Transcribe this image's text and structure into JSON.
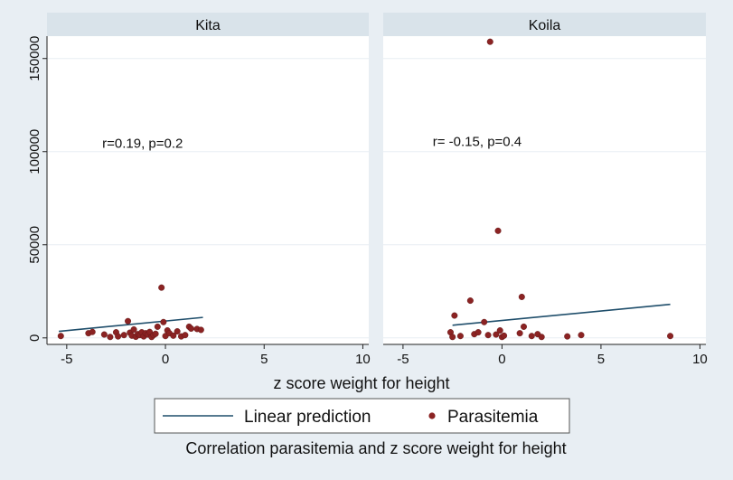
{
  "chart_data": {
    "type": "scatter",
    "title": "Correlation parasitemia and z score weight for height",
    "xlabel": "z score weight for height",
    "ylabel": "",
    "xlim": [
      -6,
      10.3
    ],
    "ylim": [
      -3500,
      162000
    ],
    "x_ticks": [
      -5,
      0,
      5,
      10
    ],
    "y_ticks": [
      0,
      50000,
      100000,
      150000
    ],
    "grid": true,
    "legend": {
      "placement": "bottom",
      "entries": [
        "Linear prediction",
        "Parasitemia"
      ]
    },
    "colors": {
      "points": "#8b2323",
      "line": "#1f4e6b",
      "panel_header": "#d9e3ea",
      "plot_bg": "#ffffff",
      "outer_bg": "#e8eef3"
    },
    "panels": [
      {
        "name": "Kita",
        "annotation": "r=0.19, p=0.2",
        "annotation_at": [
          -3.2,
          102000
        ],
        "line": {
          "x": [
            -5.4,
            1.9
          ],
          "y": [
            3500,
            11000
          ]
        },
        "points": [
          [
            -5.3,
            1000
          ],
          [
            -3.9,
            2500
          ],
          [
            -3.7,
            3200
          ],
          [
            -3.1,
            1800
          ],
          [
            -2.8,
            500
          ],
          [
            -2.5,
            3000
          ],
          [
            -2.4,
            800
          ],
          [
            -2.1,
            1500
          ],
          [
            -1.9,
            9000
          ],
          [
            -1.8,
            2800
          ],
          [
            -1.7,
            1200
          ],
          [
            -1.6,
            4500
          ],
          [
            -1.5,
            600
          ],
          [
            -1.4,
            2000
          ],
          [
            -1.3,
            1500
          ],
          [
            -1.2,
            3000
          ],
          [
            -1.1,
            800
          ],
          [
            -1.0,
            2500
          ],
          [
            -0.9,
            1800
          ],
          [
            -0.8,
            3200
          ],
          [
            -0.7,
            500
          ],
          [
            -0.6,
            1500
          ],
          [
            -0.5,
            2200
          ],
          [
            -0.4,
            6000
          ],
          [
            -0.2,
            27000
          ],
          [
            -0.1,
            8500
          ],
          [
            0.0,
            1000
          ],
          [
            0.1,
            4000
          ],
          [
            0.2,
            2500
          ],
          [
            0.4,
            1200
          ],
          [
            0.6,
            3500
          ],
          [
            0.8,
            800
          ],
          [
            1.0,
            1500
          ],
          [
            1.2,
            6000
          ],
          [
            1.3,
            5000
          ],
          [
            1.6,
            4800
          ],
          [
            1.8,
            4300
          ]
        ]
      },
      {
        "name": "Koila",
        "annotation": "r= -0.15, p=0.4",
        "annotation_at": [
          -3.5,
          103000
        ],
        "line": {
          "x": [
            -2.5,
            8.5
          ],
          "y": [
            6800,
            18000
          ]
        },
        "points": [
          [
            -2.6,
            3000
          ],
          [
            -2.5,
            500
          ],
          [
            -2.4,
            12000
          ],
          [
            -2.1,
            1000
          ],
          [
            -1.6,
            20000
          ],
          [
            -1.4,
            2000
          ],
          [
            -1.2,
            3000
          ],
          [
            -0.9,
            8500
          ],
          [
            -0.7,
            1500
          ],
          [
            -0.6,
            159000
          ],
          [
            -0.3,
            1800
          ],
          [
            -0.2,
            57500
          ],
          [
            -0.1,
            4000
          ],
          [
            0.0,
            500
          ],
          [
            0.1,
            1200
          ],
          [
            0.9,
            2500
          ],
          [
            1.0,
            22000
          ],
          [
            1.1,
            6000
          ],
          [
            1.5,
            1000
          ],
          [
            1.8,
            2000
          ],
          [
            2.0,
            500
          ],
          [
            3.3,
            800
          ],
          [
            4.0,
            1500
          ],
          [
            8.5,
            1000
          ]
        ]
      }
    ]
  }
}
